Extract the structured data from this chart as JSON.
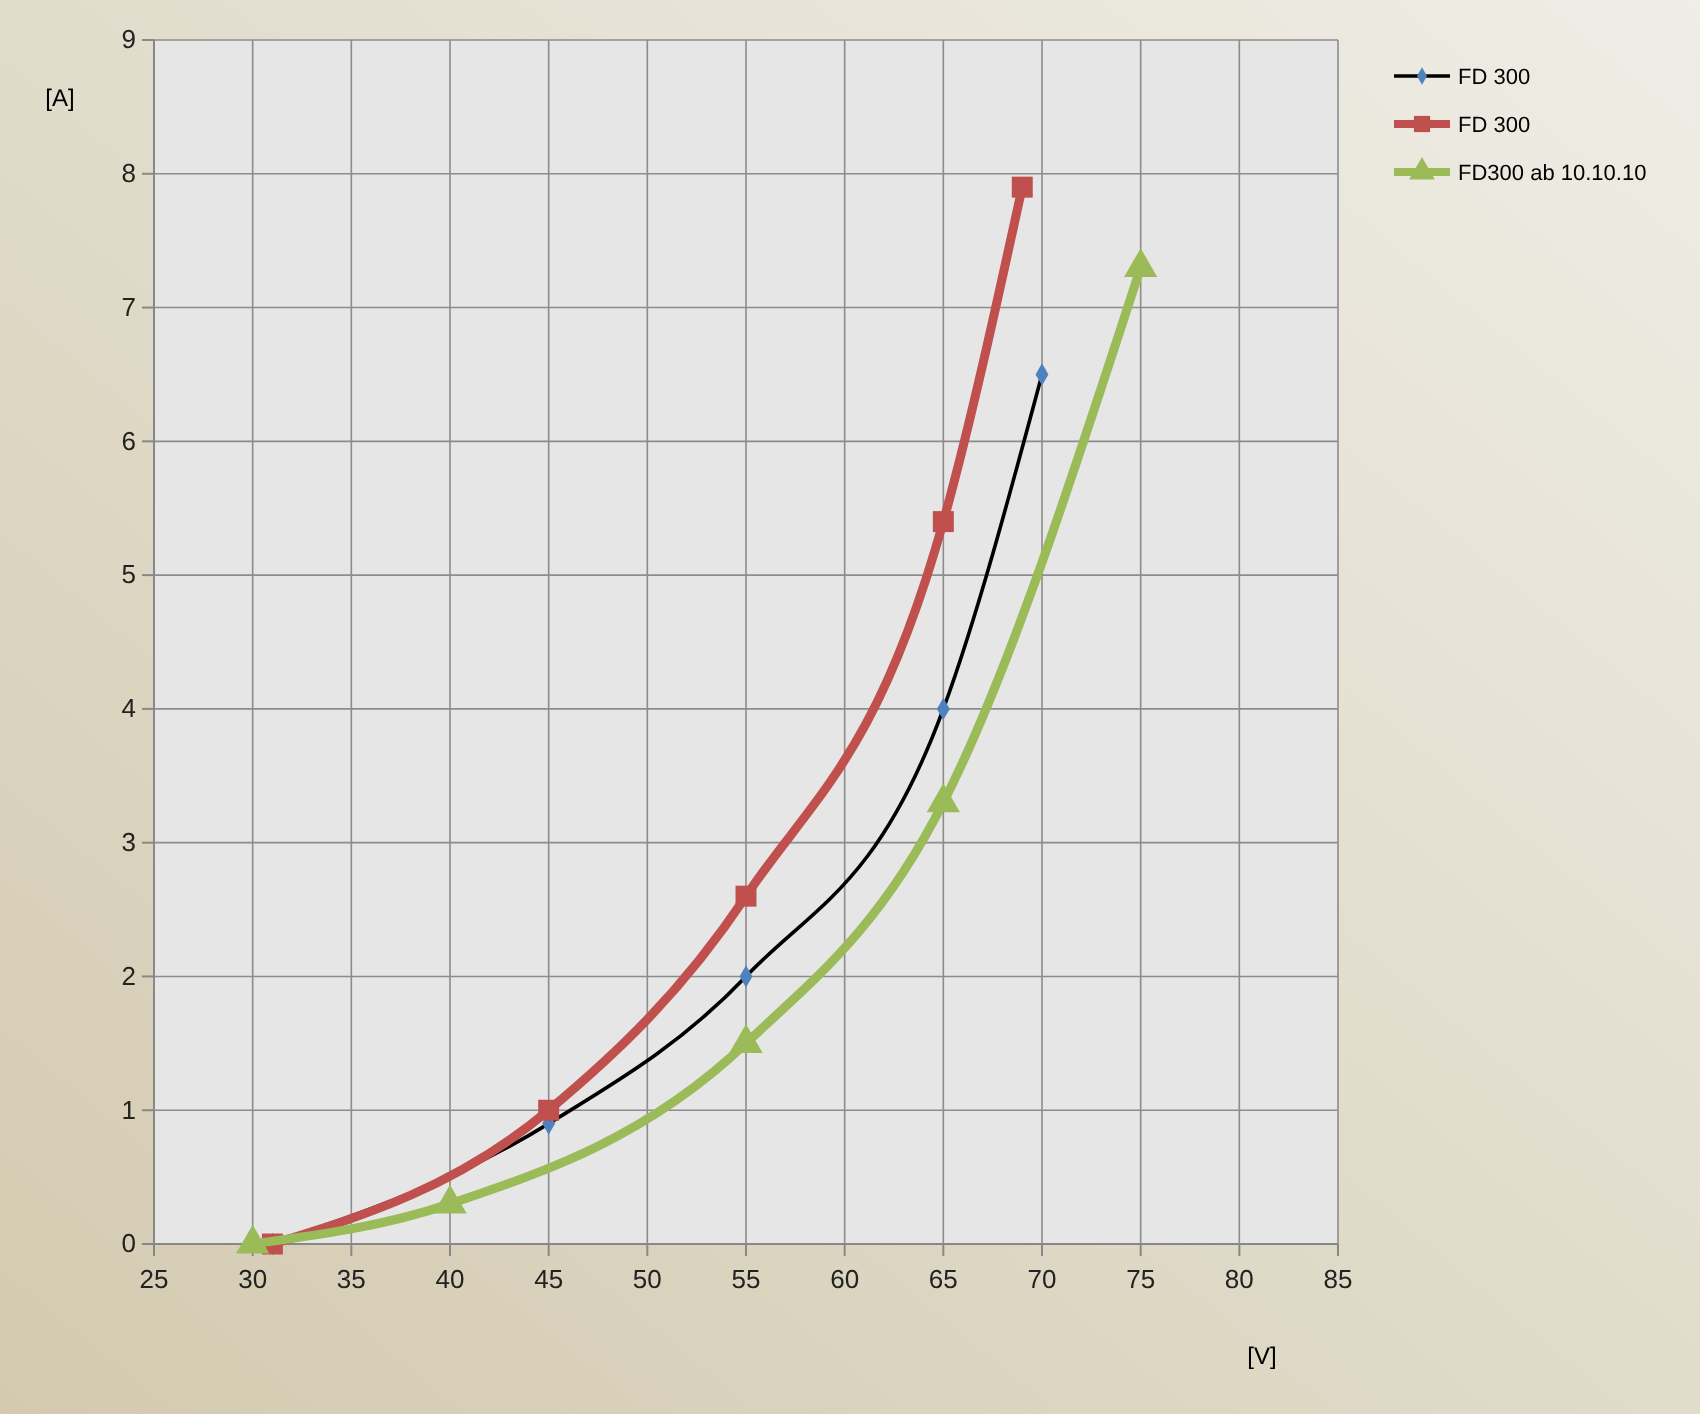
{
  "chart_data": {
    "type": "line",
    "xlabel": "[V]",
    "ylabel": "[A]",
    "xlim": [
      25,
      85
    ],
    "xticks": [
      25,
      30,
      35,
      40,
      45,
      50,
      55,
      60,
      65,
      70,
      75,
      80,
      85
    ],
    "ylim": [
      0,
      9
    ],
    "yticks": [
      0,
      1,
      2,
      3,
      4,
      5,
      6,
      7,
      8,
      9
    ],
    "grid": true,
    "legend": "right",
    "line_style": "solid",
    "series": [
      {
        "name": "FD 300",
        "color": "#000000",
        "marker": "diamond",
        "x": [
          31,
          45,
          55,
          65,
          70
        ],
        "values": [
          0,
          0.9,
          2,
          4,
          6.5
        ]
      },
      {
        "name": "FD 300",
        "color": "#c0504d",
        "marker": "square",
        "x": [
          31,
          45,
          55,
          65,
          69
        ],
        "values": [
          0,
          1,
          2.6,
          5.4,
          7.9
        ]
      },
      {
        "name": "FD300 ab 10.10.10",
        "color": "#9bbb59",
        "marker": "triangle",
        "x": [
          30,
          40,
          55,
          65,
          75
        ],
        "values": [
          0,
          0.3,
          1.5,
          3.3,
          7.3
        ]
      }
    ]
  }
}
